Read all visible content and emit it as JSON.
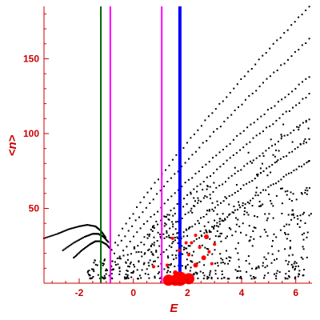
{
  "chart_data": {
    "type": "scatter",
    "title": "",
    "xlabel": "E",
    "ylabel": "<n>",
    "xlim": [
      -3.3,
      6.6
    ],
    "ylim": [
      0,
      185
    ],
    "xticks": [
      -2,
      0,
      2,
      4,
      6
    ],
    "yticks": [
      50,
      100,
      150
    ],
    "grid": false,
    "colors": {
      "axis": "#cc0000",
      "points": "#000000",
      "highlight": "#ff0000",
      "vline_green": "#006600",
      "vline_magenta": "#ff00ff",
      "vline_blue": "#0000ff"
    },
    "vertical_lines": [
      {
        "x": -1.2,
        "color": "#006600",
        "width": 2
      },
      {
        "x": -0.85,
        "color": "#ff00ff",
        "width": 2
      },
      {
        "x": 1.05,
        "color": "#ff00ff",
        "width": 2
      },
      {
        "x": 1.72,
        "color": "#0000ff",
        "width": 4
      }
    ],
    "bands": [
      {
        "from": [
          -0.8,
          22
        ],
        "to": [
          6.5,
          185
        ]
      },
      {
        "from": [
          -0.7,
          20
        ],
        "to": [
          6.5,
          163
        ]
      },
      {
        "from": [
          -0.5,
          18
        ],
        "to": [
          6.5,
          138
        ]
      },
      {
        "from": [
          -0.2,
          16
        ],
        "to": [
          6.5,
          126
        ]
      },
      {
        "from": [
          0.2,
          14
        ],
        "to": [
          6.5,
          110
        ]
      },
      {
        "from": [
          0.7,
          12
        ],
        "to": [
          6.5,
          96
        ]
      },
      {
        "from": [
          1.3,
          11
        ],
        "to": [
          6.5,
          82
        ]
      }
    ],
    "curves": [
      {
        "x": [
          -3.3,
          -2.8,
          -2.4,
          -2.0,
          -1.7,
          -1.4,
          -1.2,
          -1.0
        ],
        "y": [
          30,
          33,
          36,
          38,
          39,
          38,
          35,
          30
        ]
      },
      {
        "x": [
          -2.6,
          -2.2,
          -1.8,
          -1.5,
          -1.3,
          -1.1,
          -0.9
        ],
        "y": [
          22,
          27,
          31,
          33,
          33,
          31,
          27
        ]
      },
      {
        "x": [
          -2.2,
          -1.9,
          -1.6,
          -1.4,
          -1.2,
          -1.0,
          -0.8
        ],
        "y": [
          17,
          22,
          26,
          28,
          28,
          26,
          22
        ]
      }
    ],
    "highlight_points": [
      {
        "x": 1.3,
        "y": 2,
        "size": 7
      },
      {
        "x": 1.55,
        "y": 2,
        "size": 7
      },
      {
        "x": 1.72,
        "y": 3,
        "size": 9
      },
      {
        "x": 2.05,
        "y": 3,
        "size": 7
      },
      {
        "x": 1.55,
        "y": 7,
        "size": 3
      },
      {
        "x": 2.3,
        "y": 12,
        "size": 3
      },
      {
        "x": 2.6,
        "y": 17,
        "size": 3
      },
      {
        "x": 2.7,
        "y": 31,
        "size": 3
      },
      {
        "x": 2.45,
        "y": 24,
        "size": 2
      },
      {
        "x": 2.05,
        "y": 19,
        "size": 2
      },
      {
        "x": 1.95,
        "y": 27,
        "size": 2
      },
      {
        "x": 2.9,
        "y": 13,
        "size": 2
      },
      {
        "x": 1.25,
        "y": 12,
        "size": 2
      },
      {
        "x": 0.75,
        "y": 11,
        "size": 2
      },
      {
        "x": 2.3,
        "y": 32,
        "size": 2
      },
      {
        "x": 2.8,
        "y": 21,
        "size": 2
      },
      {
        "x": 1.7,
        "y": 22,
        "size": 2
      },
      {
        "x": 2.15,
        "y": 27,
        "size": 2
      },
      {
        "x": 1.45,
        "y": 30,
        "size": 2
      },
      {
        "x": 3.0,
        "y": 26,
        "size": 2
      }
    ]
  }
}
